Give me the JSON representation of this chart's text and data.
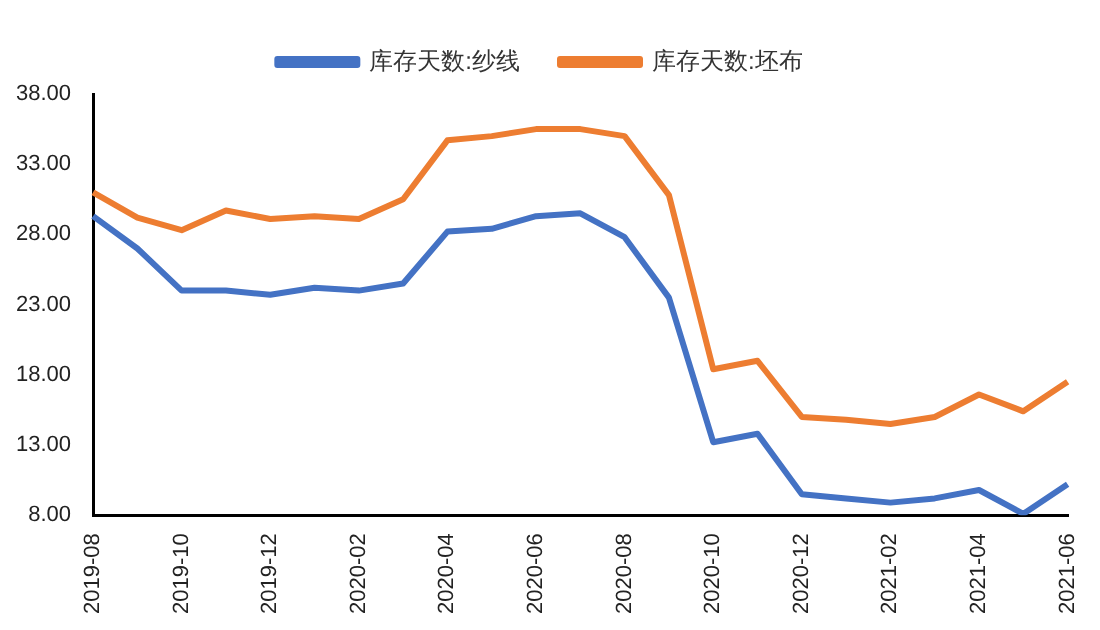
{
  "chart_data": {
    "type": "line",
    "categories": [
      "2019-08",
      null,
      "2019-10",
      null,
      "2019-12",
      null,
      "2020-02",
      null,
      "2020-04",
      null,
      "2020-06",
      null,
      "2020-08",
      null,
      "2020-10",
      null,
      "2020-12",
      null,
      "2021-02",
      null,
      "2021-04",
      null,
      "2021-06"
    ],
    "series": [
      {
        "name": "库存天数:纱线",
        "color": "#4472c4",
        "values": [
          29.3,
          27,
          24,
          24,
          23.7,
          24.2,
          24,
          24.5,
          28.2,
          28.4,
          29.3,
          29.5,
          27.8,
          23.5,
          13.2,
          13.8,
          9.5,
          9.2,
          8.9,
          9.2,
          9.8,
          8.1,
          10.2
        ]
      },
      {
        "name": "库存天数:坯布",
        "color": "#ed7d31",
        "values": [
          31,
          29.2,
          28.3,
          29.7,
          29.1,
          29.3,
          29.1,
          30.5,
          34.7,
          35,
          35.5,
          35.5,
          35,
          30.8,
          18.4,
          19,
          15,
          14.8,
          14.5,
          15,
          16.6,
          15.4,
          17.5
        ]
      }
    ],
    "ylim": [
      8,
      38
    ],
    "yticks": [
      {
        "value": 8,
        "label": "8.00"
      },
      {
        "value": 13,
        "label": "13.00"
      },
      {
        "value": 18,
        "label": "18.00"
      },
      {
        "value": 23,
        "label": "23.00"
      },
      {
        "value": 28,
        "label": "28.00"
      },
      {
        "value": 33,
        "label": "33.00"
      },
      {
        "value": 38,
        "label": "38.00"
      }
    ],
    "grid": false,
    "legend": "top",
    "marker": "none",
    "line_style": "solid"
  }
}
